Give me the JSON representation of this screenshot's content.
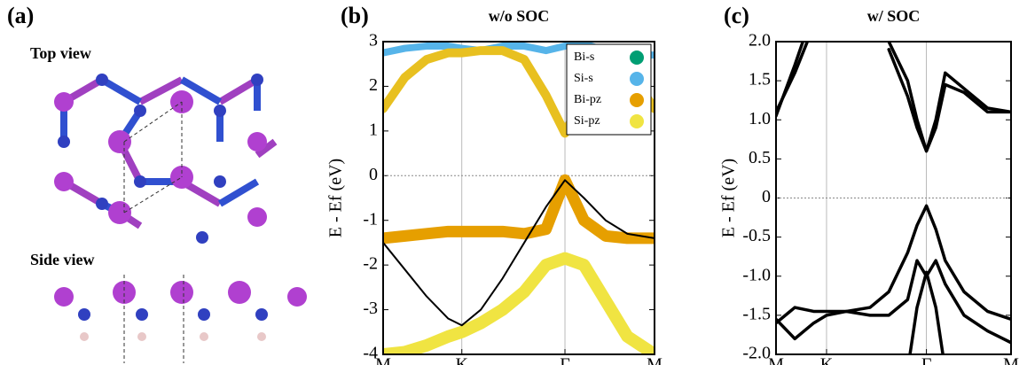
{
  "panel_a": {
    "label": "(a)",
    "top_label": "Top view",
    "side_label": "Side view"
  },
  "chart_data": [
    {
      "type": "line",
      "panel_label": "(b)",
      "title": "w/o SOC",
      "ylabel": "E - Ef (eV)",
      "x": [
        0,
        0.08,
        0.16,
        0.24,
        0.29,
        0.36,
        0.44,
        0.52,
        0.6,
        0.67,
        0.74,
        0.82,
        0.9,
        1
      ],
      "xlim": [
        0,
        1
      ],
      "ylim": [
        -4,
        3
      ],
      "xticks": [
        {
          "value": 0,
          "label": "M"
        },
        {
          "value": 0.29,
          "label": "K"
        },
        {
          "value": 0.67,
          "label": "Γ"
        },
        {
          "value": 1,
          "label": "M"
        }
      ],
      "yticks": [
        -4,
        -3,
        -2,
        -1,
        0,
        1,
        2,
        3
      ],
      "grid": "x",
      "hline": 0,
      "legend_position": "upper right",
      "legend": [
        {
          "name": "Bi-s",
          "color": "#009e73"
        },
        {
          "name": "Si-s",
          "color": "#56b4e9"
        },
        {
          "name": "Bi-pz",
          "color": "#e69f00"
        },
        {
          "name": "Si-pz",
          "color": "#f0e442"
        }
      ],
      "series": [
        {
          "color": "#f0e442",
          "linewidth": 14,
          "values": [
            -4,
            -3.95,
            -3.8,
            -3.6,
            -3.5,
            -3.3,
            -3.0,
            -2.6,
            -2.0,
            -1.85,
            -2.0,
            -2.8,
            -3.6,
            -4
          ]
        },
        {
          "color": "#e69f00",
          "linewidth": 13,
          "values": [
            -1.4,
            -1.35,
            -1.3,
            -1.25,
            -1.25,
            -1.25,
            -1.25,
            -1.3,
            -1.2,
            -0.1,
            -1.0,
            -1.35,
            -1.4,
            -1.4
          ]
        },
        {
          "color": "#000000",
          "linewidth": 2,
          "values": [
            -1.5,
            -2.1,
            -2.7,
            -3.2,
            -3.35,
            -3.0,
            -2.3,
            -1.5,
            -0.7,
            -0.1,
            -0.5,
            -1.0,
            -1.3,
            -1.4
          ]
        },
        {
          "color": "#56b4e9",
          "linewidth": 8,
          "values": [
            2.75,
            2.85,
            2.9,
            2.9,
            2.85,
            2.8,
            2.9,
            2.9,
            2.8,
            2.9,
            2.95,
            2.8,
            2.7,
            2.7
          ]
        },
        {
          "color": "#e8c020",
          "linewidth": 10,
          "values": [
            1.5,
            2.2,
            2.6,
            2.75,
            2.75,
            2.8,
            2.8,
            2.6,
            1.8,
            0.95,
            1.8,
            2.5,
            2.4,
            1.5
          ]
        }
      ]
    },
    {
      "type": "line",
      "panel_label": "(c)",
      "title": "w/ SOC",
      "ylabel": "E - Ef (eV)",
      "x": [
        0,
        0.08,
        0.16,
        0.215,
        0.3,
        0.4,
        0.48,
        0.56,
        0.6,
        0.64,
        0.68,
        0.72,
        0.8,
        0.9,
        1
      ],
      "xlim": [
        0,
        1
      ],
      "ylim": [
        -2,
        2
      ],
      "xticks": [
        {
          "value": 0,
          "label": "M"
        },
        {
          "value": 0.215,
          "label": "K"
        },
        {
          "value": 0.64,
          "label": "Γ"
        },
        {
          "value": 1,
          "label": "M"
        }
      ],
      "yticks": [
        {
          "value": -2,
          "label": "-2.0"
        },
        -1.5,
        {
          "value": -1,
          "label": "-1.0"
        },
        -0.5,
        0,
        0.5,
        {
          "value": 1,
          "label": "1.0"
        },
        1.5,
        {
          "value": 2,
          "label": "2.0"
        }
      ],
      "grid": "x",
      "hline": 0,
      "series": [
        {
          "color": "#000000",
          "linewidth": 3.5,
          "values": [
            1.05,
            1.7,
            2.4,
            null,
            null,
            null,
            2.0,
            1.5,
            1.0,
            0.6,
            1.0,
            1.6,
            1.4,
            1.15,
            1.1
          ]
        },
        {
          "color": "#000000",
          "linewidth": 3.5,
          "values": [
            1.1,
            1.6,
            2.2,
            null,
            null,
            null,
            1.9,
            1.3,
            0.9,
            0.6,
            0.9,
            1.45,
            1.35,
            1.1,
            1.1
          ]
        },
        {
          "color": "#000000",
          "linewidth": 3.5,
          "values": [
            -1.6,
            -1.4,
            -1.45,
            -1.45,
            -1.45,
            -1.4,
            -1.2,
            -0.7,
            -0.35,
            -0.1,
            -0.4,
            -0.8,
            -1.2,
            -1.45,
            -1.55
          ]
        },
        {
          "color": "#000000",
          "linewidth": 3.5,
          "values": [
            -1.55,
            -1.8,
            -1.6,
            -1.5,
            -1.45,
            -1.5,
            -1.5,
            -1.3,
            -0.8,
            -1.0,
            -0.8,
            -1.1,
            -1.5,
            -1.7,
            -1.85
          ]
        },
        {
          "color": "#000000",
          "linewidth": 3.5,
          "values": [
            null,
            null,
            null,
            null,
            null,
            null,
            null,
            -2.2,
            -1.4,
            -0.95,
            -1.4,
            -2.2,
            null,
            null,
            null
          ]
        }
      ]
    }
  ]
}
